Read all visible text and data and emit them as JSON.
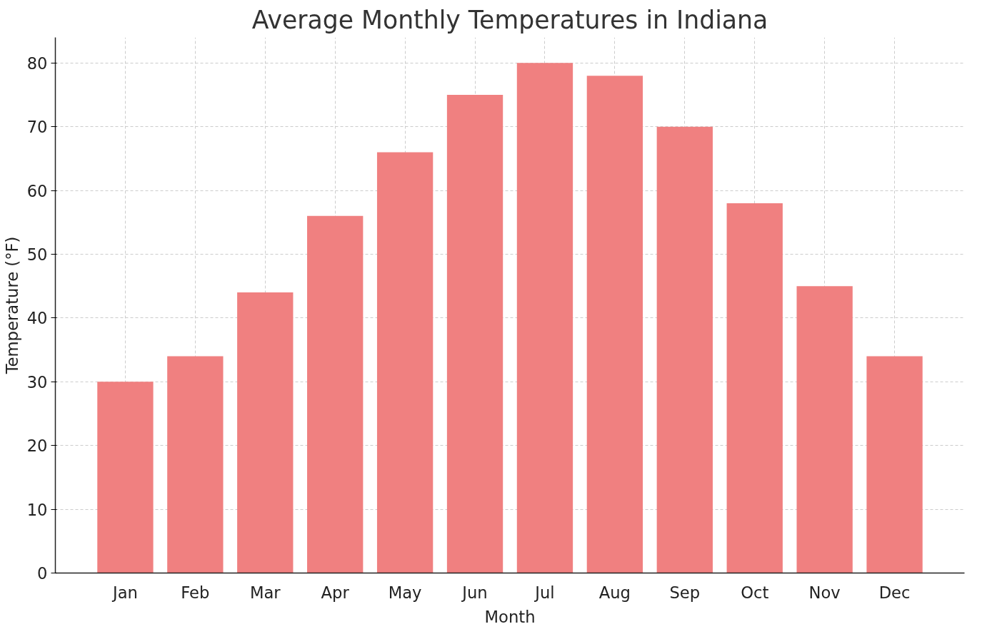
{
  "chart_data": {
    "type": "bar",
    "title": "Average Monthly Temperatures in Indiana",
    "xlabel": "Month",
    "ylabel": "Temperature (°F)",
    "categories": [
      "Jan",
      "Feb",
      "Mar",
      "Apr",
      "May",
      "Jun",
      "Jul",
      "Aug",
      "Sep",
      "Oct",
      "Nov",
      "Dec"
    ],
    "values": [
      30,
      34,
      44,
      56,
      66,
      75,
      80,
      78,
      70,
      58,
      45,
      34
    ],
    "color": "#f08080",
    "ylim": [
      0,
      84
    ],
    "yticks": [
      0,
      10,
      20,
      30,
      40,
      50,
      60,
      70,
      80
    ],
    "grid": true
  }
}
